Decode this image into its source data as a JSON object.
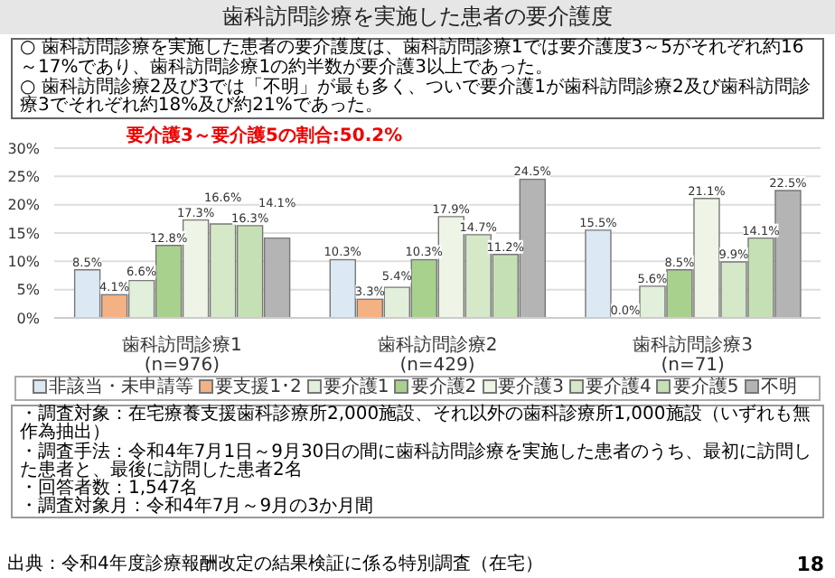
{
  "chart_data": {
    "type": "bar",
    "title": "歯科訪問診療を実施した患者の要介護度",
    "categories": [
      "歯科訪問診療1\n(n=976)",
      "歯科訪問診療2\n(n=429)",
      "歯科訪問診療3\n(n=71)"
    ],
    "series": [
      {
        "name": "非該当・未申請等",
        "color": "#dce9f5",
        "values": [
          8.5,
          10.3,
          15.5
        ],
        "value_labels": [
          "8.5%",
          "10.3%",
          "15.5%"
        ]
      },
      {
        "name": "要支援1･2",
        "color": "#f4b183",
        "values": [
          4.1,
          3.3,
          0.0
        ],
        "value_labels": [
          "4.1%",
          "3.3%",
          "0.0%"
        ]
      },
      {
        "name": "要介護1",
        "color": "#e2efda",
        "values": [
          6.6,
          5.4,
          5.6
        ],
        "value_labels": [
          "6.6%",
          "5.4%",
          "5.6%"
        ]
      },
      {
        "name": "要介護2",
        "color": "#a9d18e",
        "values": [
          12.8,
          10.3,
          8.5
        ],
        "value_labels": [
          "12.8%",
          "10.3%",
          "8.5%"
        ]
      },
      {
        "name": "要介護3",
        "color": "#eef5e6",
        "values": [
          17.3,
          17.9,
          21.1
        ],
        "value_labels": [
          "17.3%",
          "17.9%",
          "21.1%"
        ]
      },
      {
        "name": "要介護4",
        "color": "#d5e8c8",
        "values": [
          16.6,
          14.7,
          9.9
        ],
        "value_labels": [
          "16.6%",
          "14.7%",
          "9.9%"
        ]
      },
      {
        "name": "要介護5",
        "color": "#c5e0b4",
        "values": [
          16.3,
          11.2,
          14.1
        ],
        "value_labels": [
          "16.3%",
          "11.2%",
          "14.1%"
        ]
      },
      {
        "name": "不明",
        "color": "#b4b4b4",
        "values": [
          14.1,
          24.5,
          22.5
        ],
        "value_labels": [
          "14.1%",
          "24.5%",
          "22.5%"
        ]
      }
    ],
    "ylim": [
      0,
      30
    ],
    "yticks": [
      {
        "value": 0,
        "label": "0%"
      },
      {
        "value": 5,
        "label": "5%"
      },
      {
        "value": 10,
        "label": "10%"
      },
      {
        "value": 15,
        "label": "15%"
      },
      {
        "value": 20,
        "label": "20%"
      },
      {
        "value": 25,
        "label": "25%"
      },
      {
        "value": 30,
        "label": "30%"
      }
    ],
    "grid": "y",
    "legend": "bottom",
    "annotations": [
      "要介護3～要介護5の割合:50.2%",
      "○ 歯科訪問診療を実施した患者の要介護度は、歯科訪問診療1では要介護度3～5がそれぞれ約16～17%であり、歯科訪問診療1の約半数が要介護3以上であった。",
      "○ 歯科訪問診療2及び3では「不明」が最も多く、ついで要介護1が歯科訪問診療2及び歯科訪問診療3でそれぞれ約18%及び約21%であった。",
      "・調査対象：在宅療養支援歯科診療所2,000施設、それ以外の歯科診療所1,000施設（いずれも無作為抽出）",
      "・調査手法：令和4年7月1日～9月30日の間に歯科訪問診療を実施した患者のうち、最初に訪問した患者と、最後に訪問した患者2名",
      "・回答者数：1,547名",
      "・調査対象月：令和4年7月～9月の3か月間",
      "出典：令和4年度診療報酬改定の結果検証に係る特別調査（在宅）",
      "18"
    ]
  }
}
